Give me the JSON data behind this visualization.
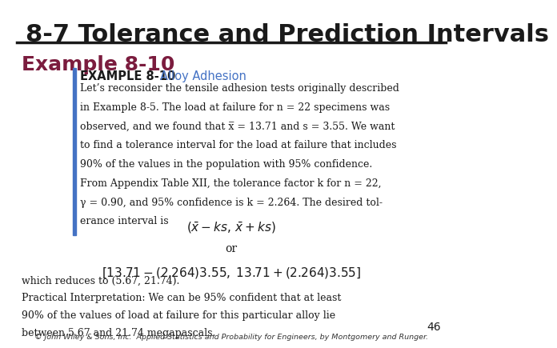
{
  "title": "8-7 Tolerance and Prediction Intervals",
  "title_color": "#1a1a1a",
  "title_fontsize": 22,
  "example_label": "Example 8-10",
  "example_label_color": "#7b1c3e",
  "example_label_fontsize": 18,
  "box_title_bold": "EXAMPLE 8-10",
  "box_title_colored": "Alloy Adhesion",
  "box_title_color": "#4472c4",
  "body_lines": [
    "Let’s reconsider the tensile adhesion tests originally described",
    "in Example 8-5. The load at failure for n = 22 specimens was",
    "observed, and we found that x̅ = 13.71 and s = 3.55. We want",
    "to find a tolerance interval for the load at failure that includes",
    "90% of the values in the population with 95% confidence.",
    "From Appendix Table XII, the tolerance factor k for n = 22,",
    "γ = 0.90, and 95% confidence is k = 2.264. The desired tol-",
    "erance interval is"
  ],
  "bottom_lines": [
    "which reduces to (5.67, 21.74).",
    "Practical Interpretation: We can be 95% confident that at least",
    "90% of the values of load at failure for this particular alloy lie",
    "between 5.67 and 21.74 megapascals."
  ],
  "page_number": "46",
  "footer": "© John Wiley & Sons, Inc.  Applied Statistics and Probability for Engineers, by Montgomery and Runger.",
  "bg_color": "#ffffff",
  "line_color": "#1a1a1a",
  "bar_color": "#4472c4"
}
